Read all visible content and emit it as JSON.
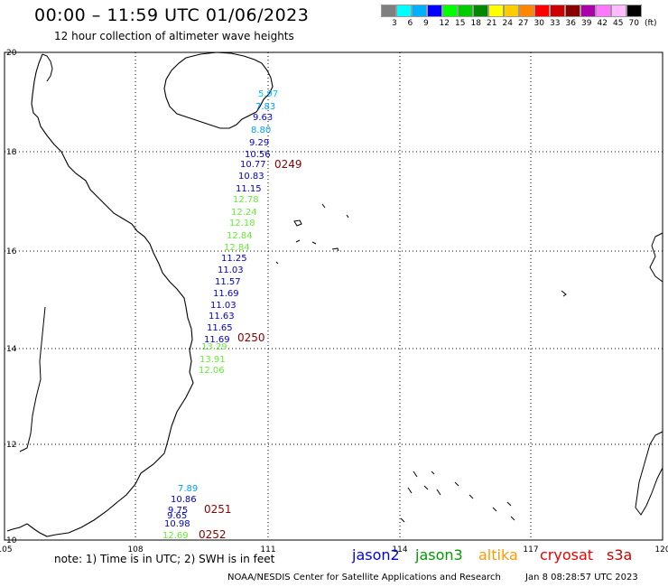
{
  "title": "00:00 – 11:59 UTC 01/06/2023",
  "subtitle": "12 hour collection of altimeter wave heights",
  "scale": {
    "colors": [
      "#7f7f7f",
      "#00ffff",
      "#00b0ff",
      "#0000ff",
      "#00ff00",
      "#00cc00",
      "#008800",
      "#ffff00",
      "#ffcc00",
      "#ff8800",
      "#ff0000",
      "#cc0000",
      "#880000",
      "#aa00aa",
      "#ff77ff",
      "#ffbbff",
      "#000000"
    ],
    "labels": [
      "3",
      "6",
      "9",
      "12",
      "15",
      "18",
      "21",
      "24",
      "27",
      "30",
      "33",
      "36",
      "39",
      "42",
      "45",
      "70",
      "(ft)"
    ]
  },
  "map": {
    "lon_ticks": [
      "105",
      "108",
      "111",
      "114",
      "117",
      "120"
    ],
    "lat_ticks": [
      "20",
      "18",
      "16",
      "14",
      "12",
      "10"
    ],
    "lon_range": [
      105,
      120
    ],
    "lat_range": [
      10,
      20
    ],
    "grid": "dotted"
  },
  "wave_heights": [
    {
      "v": "5.97",
      "color": "#00c8ff"
    },
    {
      "v": "7.83",
      "color": "#00a0ff"
    },
    {
      "v": "9.63",
      "color": "#0000cc"
    },
    {
      "v": "8.80",
      "color": "#00a0ff"
    },
    {
      "v": "9.29",
      "color": "#0000cc"
    },
    {
      "v": "10.56",
      "color": "#0000cc"
    },
    {
      "v": "10.77",
      "color": "#0000cc"
    },
    {
      "v": "10.83",
      "color": "#0000cc"
    },
    {
      "v": "11.15",
      "color": "#0000cc"
    },
    {
      "v": "12.78",
      "color": "#66ee33"
    },
    {
      "v": "12.24",
      "color": "#66ee33"
    },
    {
      "v": "12.18",
      "color": "#66ee33"
    },
    {
      "v": "12.84",
      "color": "#66ee33"
    },
    {
      "v": "12.84",
      "color": "#66ee33"
    },
    {
      "v": "11.25",
      "color": "#0000cc"
    },
    {
      "v": "11.03",
      "color": "#0000cc"
    },
    {
      "v": "11.57",
      "color": "#0000cc"
    },
    {
      "v": "11.69",
      "color": "#0000cc"
    },
    {
      "v": "11.03",
      "color": "#0000cc"
    },
    {
      "v": "11.63",
      "color": "#0000cc"
    },
    {
      "v": "11.65",
      "color": "#0000cc"
    },
    {
      "v": "11.69",
      "color": "#0000cc"
    },
    {
      "v": "13.29",
      "color": "#66ee33"
    },
    {
      "v": "13.91",
      "color": "#66ee33"
    },
    {
      "v": "12.06",
      "color": "#66ee33"
    },
    {
      "v": "7.89",
      "color": "#00a0ff"
    },
    {
      "v": "10.86",
      "color": "#0000cc"
    },
    {
      "v": "9.75",
      "color": "#0000cc"
    },
    {
      "v": "9.65",
      "color": "#0000cc"
    },
    {
      "v": "10.98",
      "color": "#0000cc"
    },
    {
      "v": "12.69",
      "color": "#66ee33"
    }
  ],
  "pass_times": [
    "0249",
    "0250",
    "0251",
    "0252"
  ],
  "pass_time_color": "#880000",
  "note": "note:  1) Time is in UTC; 2) SWH is in feet",
  "satellites": [
    {
      "name": "jason2",
      "color": "#0000ee"
    },
    {
      "name": "jason3",
      "color": "#009900"
    },
    {
      "name": "altika",
      "color": "#ff9900"
    },
    {
      "name": "cryosat",
      "color": "#ee0000"
    },
    {
      "name": "s3a",
      "color": "#cc0000"
    }
  ],
  "credit": "NOAA/NESDIS Center for Satellite Applications and Research",
  "timestamp": "Jan  8 08:28:57 UTC 2023"
}
